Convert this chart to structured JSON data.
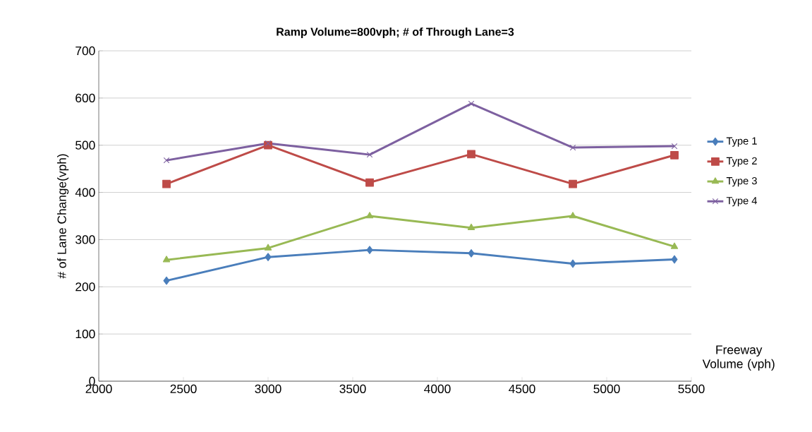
{
  "chart_data": {
    "type": "line",
    "title": "Ramp Volume=800vph; # of Through Lane=3",
    "xlabel": "Freeway Volume (vph)",
    "ylabel": "# of Lane Change(vph)",
    "x": [
      2400,
      3000,
      3600,
      4200,
      4800,
      5400
    ],
    "series": [
      {
        "name": "Type 1",
        "color": "#4a7ebb",
        "marker": "diamond",
        "values": [
          213,
          263,
          278,
          271,
          249,
          258
        ]
      },
      {
        "name": "Type 2",
        "color": "#be4b48",
        "marker": "square",
        "values": [
          418,
          500,
          421,
          481,
          418,
          479
        ]
      },
      {
        "name": "Type 3",
        "color": "#98b954",
        "marker": "triangle",
        "values": [
          257,
          282,
          350,
          325,
          350,
          285
        ]
      },
      {
        "name": "Type 4",
        "color": "#7d60a0",
        "marker": "cross",
        "values": [
          468,
          504,
          480,
          588,
          495,
          498
        ]
      }
    ],
    "xlim": [
      2000,
      5500
    ],
    "xticks": [
      2000,
      2500,
      3000,
      3500,
      4000,
      4500,
      5000,
      5500
    ],
    "ylim": [
      0,
      700
    ],
    "yticks": [
      0,
      100,
      200,
      300,
      400,
      500,
      600,
      700
    ],
    "grid": "y",
    "legend": "right",
    "line_style": "solid"
  }
}
